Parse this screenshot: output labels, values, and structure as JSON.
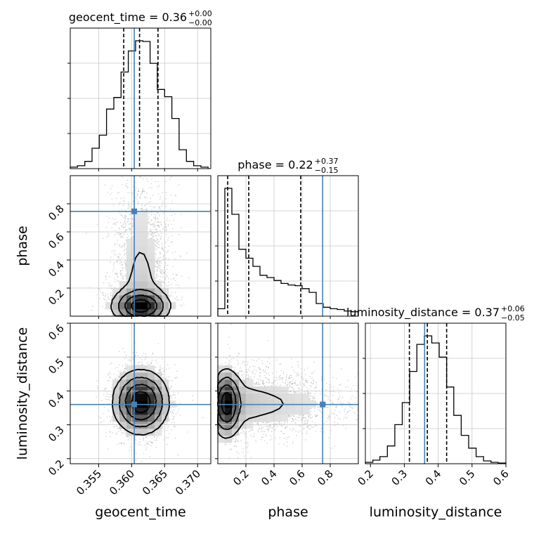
{
  "chart_data": {
    "type": "corner",
    "parameters": [
      "geocent_time",
      "phase",
      "luminosity_distance"
    ],
    "axis_labels": {
      "geocent_time": "geocent_time",
      "phase": "phase",
      "luminosity_distance": "luminosity_distance"
    },
    "ranges": {
      "geocent_time": [
        0.3507,
        0.372
      ],
      "phase": [
        0.0,
        1.0
      ],
      "luminosity_distance": [
        0.185,
        0.6
      ]
    },
    "ticks": {
      "geocent_time": [
        0.355,
        0.36,
        0.365,
        0.37
      ],
      "phase": [
        0.2,
        0.4,
        0.6,
        0.8
      ],
      "luminosity_distance": [
        0.2,
        0.3,
        0.4,
        0.5,
        0.6
      ]
    },
    "tick_labels": {
      "geocent_time": [
        "0.355",
        "0.360",
        "0.365",
        "0.370"
      ],
      "phase": [
        "0.2",
        "0.4",
        "0.6",
        "0.8"
      ],
      "luminosity_distance": [
        "0.2",
        "0.3",
        "0.4",
        "0.5",
        "0.6"
      ]
    },
    "titles": {
      "geocent_time": {
        "text": "geocent_time = 0.36",
        "upper": "+0.00",
        "lower": "−0.00"
      },
      "phase": {
        "text": "phase = 0.22",
        "upper": "+0.37",
        "lower": "−0.15"
      },
      "luminosity_distance": {
        "text": "luminosity_distance = 0.37",
        "upper": "+0.06",
        "lower": "−0.05"
      }
    },
    "truths": {
      "geocent_time": 0.3604,
      "phase": 0.746,
      "luminosity_distance": 0.36
    },
    "quantiles": {
      "geocent_time": [
        0.3588,
        0.3612,
        0.364
      ],
      "phase": [
        0.07,
        0.22,
        0.59
      ],
      "luminosity_distance": [
        0.315,
        0.368,
        0.425
      ]
    },
    "histograms": {
      "geocent_time": {
        "edges": [
          0.3507,
          0.3518,
          0.3529,
          0.354,
          0.3551,
          0.3562,
          0.3573,
          0.3584,
          0.3595,
          0.3606,
          0.3617,
          0.3628,
          0.3639,
          0.365,
          0.3661,
          0.3672,
          0.3683,
          0.3694,
          0.3705,
          0.3716
        ],
        "counts": [
          2,
          4,
          10,
          28,
          46,
          82,
          98,
          133,
          162,
          176,
          175,
          145,
          109,
          99,
          69,
          26,
          10,
          4,
          2
        ],
        "ymax": 176
      },
      "phase": {
        "edges": [
          0.0,
          0.05,
          0.1,
          0.15,
          0.2,
          0.25,
          0.3,
          0.35,
          0.4,
          0.45,
          0.5,
          0.55,
          0.6,
          0.65,
          0.7,
          0.75,
          0.8,
          0.85,
          0.9,
          0.95,
          1.0
        ],
        "counts": [
          10,
          172,
          137,
          90,
          78,
          67,
          55,
          52,
          48,
          44,
          42,
          41,
          37,
          32,
          17,
          12,
          10,
          9,
          7,
          6
        ],
        "ymax": 172
      },
      "luminosity_distance": {
        "edges": [
          0.185,
          0.207,
          0.228,
          0.25,
          0.272,
          0.294,
          0.316,
          0.337,
          0.359,
          0.381,
          0.403,
          0.425,
          0.446,
          0.468,
          0.49,
          0.512,
          0.534,
          0.556,
          0.577,
          0.6
        ],
        "counts": [
          2,
          5,
          10,
          25,
          55,
          86,
          130,
          168,
          180,
          170,
          150,
          108,
          68,
          40,
          22,
          10,
          4,
          2,
          1
        ],
        "ymax": 180
      }
    },
    "grid": true
  }
}
